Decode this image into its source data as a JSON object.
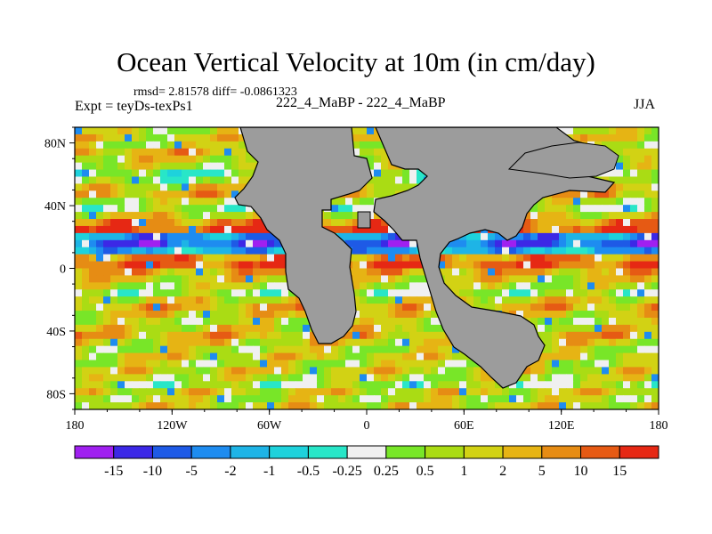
{
  "chart_data": {
    "type": "heatmap",
    "title": "Ocean Vertical Velocity at 10m (in cm/day)",
    "stats_text": "rmsd= 2.81578 diff= -0.0861323",
    "left_label": "Expt = teyDs-texPs1",
    "center_label": "222_4_MaBP - 222_4_MaBP",
    "season": "JJA",
    "x_ticks": [
      "180",
      "120W",
      "60W",
      "0",
      "60E",
      "120E",
      "180"
    ],
    "x_values": [
      -180,
      -120,
      -60,
      0,
      60,
      120,
      180
    ],
    "y_ticks": [
      "80N",
      "40N",
      "0",
      "40S",
      "80S"
    ],
    "y_values": [
      80,
      40,
      0,
      -40,
      -80
    ],
    "xlim": [
      -180,
      180
    ],
    "ylim": [
      -90,
      90
    ],
    "colorbar_labels": [
      "-15",
      "-10",
      "-5",
      "-2",
      "-1",
      "-0.5",
      "-0.25",
      "0.25",
      "0.5",
      "1",
      "2",
      "5",
      "10",
      "15"
    ],
    "colorbar_colors": [
      "#a020f0",
      "#3c28e6",
      "#1e5ae6",
      "#1e8cf0",
      "#1eb4e6",
      "#1ed2dc",
      "#28e6c8",
      "#f0f0f0",
      "#78e628",
      "#aadc14",
      "#d2d214",
      "#e6b414",
      "#e68c14",
      "#e65a14",
      "#e62814"
    ],
    "land_color": "#9c9c9c"
  }
}
